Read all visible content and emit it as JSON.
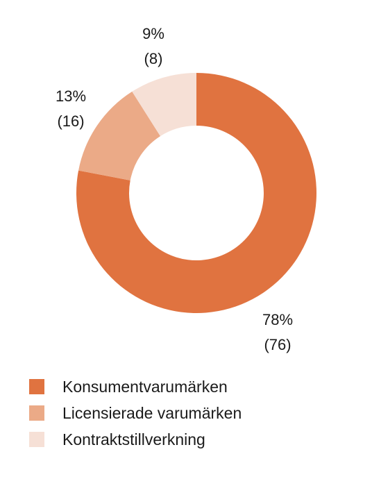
{
  "chart_data": {
    "type": "pie",
    "variant": "donut",
    "categories": [
      "Konsumentvarumärken",
      "Licensierade varumärken",
      "Kontraktstillverkning"
    ],
    "values": [
      78,
      13,
      9
    ],
    "counts": [
      76,
      16,
      8
    ],
    "percent_labels": [
      "78%",
      "13%",
      "9%"
    ],
    "count_labels": [
      "(76)",
      "(16)",
      "(8)"
    ],
    "colors": [
      "#E07340",
      "#EBAA87",
      "#F6E0D6"
    ],
    "start_angle_deg": 0,
    "direction": "clockwise",
    "legend": "bottom-left"
  }
}
